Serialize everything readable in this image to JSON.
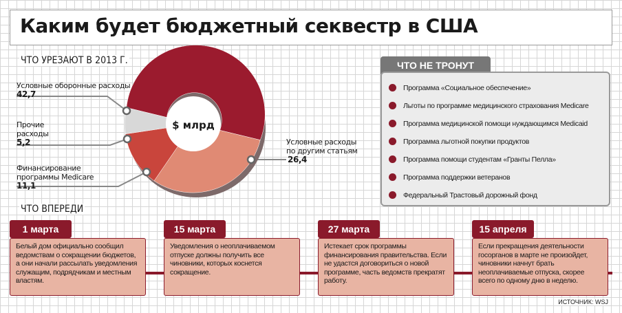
{
  "title": "Каким будет бюджетный секвестр в США",
  "cuts_heading": "ЧТО УРЕЗАЮТ В 2013 Г.",
  "chart_data": {
    "type": "pie",
    "center_label": "$ млрд",
    "slices": [
      {
        "name": "Условные оборонные расходы",
        "value": 42.7,
        "label": "42,7",
        "color": "#9b1b2e"
      },
      {
        "name": "Условные расходы по другим статьям",
        "value": 26.4,
        "label": "26,4",
        "color": "#e08a74"
      },
      {
        "name": "Финансирование программы Medicare",
        "value": 11.1,
        "label": "11,1",
        "color": "#c9453c"
      },
      {
        "name": "Прочие расходы",
        "value": 5.2,
        "label": "5,2",
        "color": "#d8d8d8"
      }
    ]
  },
  "labels": {
    "defense_l1": "Условные оборонные расходы",
    "defense_v": "42,7",
    "other_l1": "Прочие",
    "other_l2": "расходы",
    "other_v": "5,2",
    "medicare_l1": "Финансирование",
    "medicare_l2": "программы Medicare",
    "medicare_v": "11,1",
    "rest_l1": "Условные расходы",
    "rest_l2": "по другим статьям",
    "rest_v": "26,4"
  },
  "keep": {
    "title": "ЧТО НЕ ТРОНУТ",
    "items": [
      "Программа «Социальное обеспечение»",
      "Льготы по программе медицинского страхования Medicare",
      "Программа медицинской помощи нуждающимся Medicaid",
      "Программа льготной покупки продуктов",
      "Программа помощи студентам «Гранты Пелла»",
      "Программа поддержки ветеранов",
      "Федеральный Трастовый дорожный фонд"
    ]
  },
  "ahead_heading": "ЧТО ВПЕРЕДИ",
  "timeline": [
    {
      "date": "1 марта",
      "text": "Белый дом официально сообщил ведомствам о сокращении бюджетов, а они начали рассылать уведомления служащим, подрядчикам и местным властям."
    },
    {
      "date": "15 марта",
      "text": "Уведомления о неоплачиваемом отпуске должны получить все чиновники, которых коснется сокращение."
    },
    {
      "date": "27 марта",
      "text": "Истекает срок программы финансирования правительства. Если не удастся договориться о новой программе, часть ведомств прекратят работу."
    },
    {
      "date": "15 апреля",
      "text": "Если прекращения деятельности госорганов в марте не произойдет, чиновники начнут брать неоплачиваемые отпуска, скорее всего по одному дню в неделю."
    }
  ],
  "source": "ИСТОЧНИК: WSJ"
}
